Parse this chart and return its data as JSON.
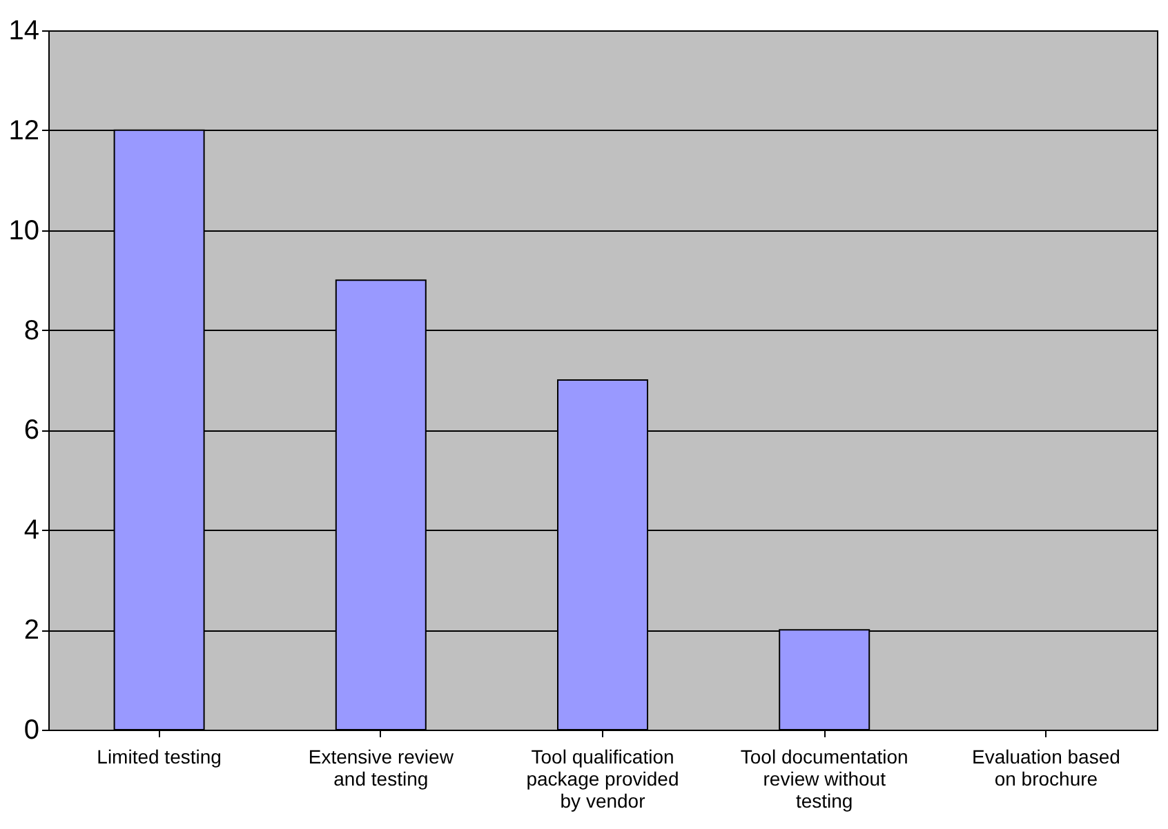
{
  "chart_data": {
    "type": "bar",
    "categories": [
      "Limited testing",
      "Extensive review and testing",
      "Tool qualification package provided by vendor",
      "Tool documentation review without testing",
      "Evaluation based on brochure"
    ],
    "values": [
      12,
      9,
      7,
      2,
      0
    ],
    "color": "#9999ff",
    "ylim": [
      0,
      14
    ],
    "yticks": [
      0,
      2,
      4,
      6,
      8,
      10,
      12,
      14
    ],
    "grid": "y"
  }
}
